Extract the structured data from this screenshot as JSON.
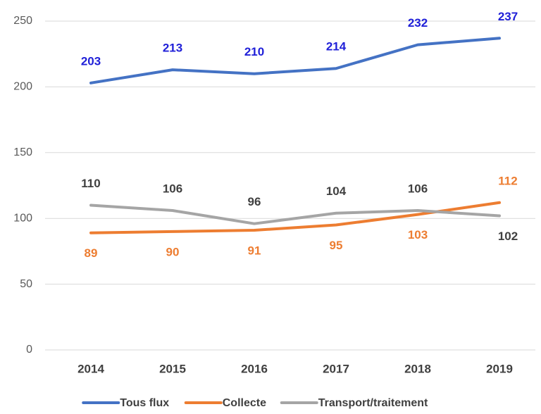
{
  "chart_data": {
    "type": "line",
    "categories": [
      "2014",
      "2015",
      "2016",
      "2017",
      "2018",
      "2019"
    ],
    "series": [
      {
        "name": "Tous flux",
        "color": "#4472c4",
        "values": [
          203,
          213,
          210,
          214,
          232,
          237
        ]
      },
      {
        "name": "Collecte",
        "color": "#ed7d31",
        "values": [
          89,
          90,
          91,
          95,
          103,
          112
        ]
      },
      {
        "name": "Transport/traitement",
        "color": "#a5a5a5",
        "values": [
          110,
          106,
          96,
          104,
          106,
          102
        ]
      }
    ],
    "ylim": [
      0,
      250
    ],
    "yticks": [
      0,
      50,
      100,
      150,
      200,
      250
    ],
    "grid": true
  }
}
